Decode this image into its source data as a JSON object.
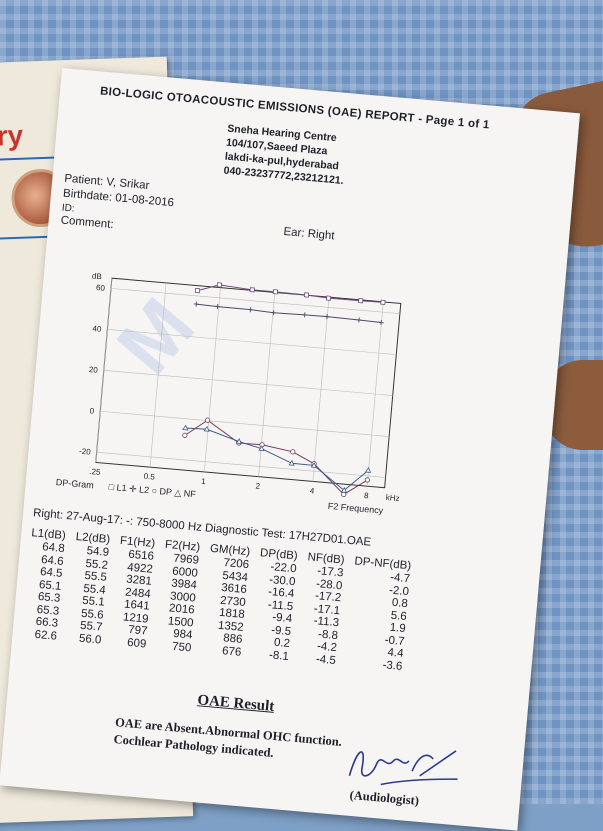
{
  "booklet": {
    "heading_fragment": "try"
  },
  "report": {
    "title": "BIO-LOGIC OTOACOUSTIC EMISSIONS (OAE) REPORT - Page 1 of 1",
    "centre": {
      "name": "Sneha Hearing Centre",
      "line1": "104/107,Saeed Plaza",
      "line2": "lakdi-ka-pul,hyderabad",
      "phone": "040-23237772,23212121."
    },
    "patient_label": "Patient: V, Srikar",
    "birthdate_label": "Birthdate: 01-08-2016",
    "id_label": "ID:",
    "comment_label": "Comment:",
    "ear_label": "Ear: Right",
    "test_line": "Right: 27-Aug-17: -: 750-8000 Hz Diagnostic Test: 17H27D01.OAE",
    "table": {
      "headers": [
        "L1(dB)",
        "L2(dB)",
        "F1(Hz)",
        "F2(Hz)",
        "GM(Hz)",
        "DP(dB)",
        "NF(dB)",
        "DP-NF(dB)"
      ],
      "rows": [
        [
          "64.8",
          "54.9",
          "6516",
          "7969",
          "7206",
          "-22.0",
          "-17.3",
          "-4.7"
        ],
        [
          "64.6",
          "55.2",
          "4922",
          "6000",
          "5434",
          "-30.0",
          "-28.0",
          "-2.0"
        ],
        [
          "64.5",
          "55.5",
          "3281",
          "3984",
          "3616",
          "-16.4",
          "-17.2",
          "0.8"
        ],
        [
          "65.1",
          "55.4",
          "2484",
          "3000",
          "2730",
          "-11.5",
          "-17.1",
          "5.6"
        ],
        [
          "65.3",
          "55.1",
          "1641",
          "2016",
          "1818",
          "-9.4",
          "-11.3",
          "1.9"
        ],
        [
          "65.3",
          "55.6",
          "1219",
          "1500",
          "1352",
          "-9.5",
          "-8.8",
          "-0.7"
        ],
        [
          "66.3",
          "55.7",
          "797",
          "984",
          "886",
          "0.2",
          "-4.2",
          "4.4"
        ],
        [
          "62.6",
          "56.0",
          "609",
          "750",
          "676",
          "-8.1",
          "-4.5",
          "-3.6"
        ]
      ]
    },
    "result_heading": "OAE Result",
    "result_line1": "OAE are Absent.Abnormal OHC function.",
    "result_line2": "Cochlear Pathology indicated.",
    "signoff": "(Audiologist)"
  },
  "chart_data": {
    "type": "line",
    "title": "DP-Gram",
    "xlabel": "F2 Frequency",
    "ylabel": "dB",
    "x_unit": "kHz",
    "x_scale": "log",
    "xlim": [
      0.25,
      10
    ],
    "ylim": [
      -25,
      65
    ],
    "x_ticks": [
      ".25",
      "0.5",
      "1",
      "2",
      "4",
      "8",
      "kHz"
    ],
    "y_ticks": [
      "60",
      "40",
      "20",
      "0",
      "-20"
    ],
    "legend": [
      "L1",
      "L2",
      "DP",
      "NF"
    ],
    "legend_position": "bottom",
    "series": [
      {
        "name": "L1",
        "marker": "square",
        "x": [
          0.75,
          0.984,
          1.5,
          2.016,
          3.0,
          3.984,
          6.0,
          7.969
        ],
        "y": [
          62.6,
          66.3,
          65.3,
          65.3,
          65.1,
          64.5,
          64.6,
          64.8
        ]
      },
      {
        "name": "L2",
        "marker": "cross",
        "x": [
          0.75,
          0.984,
          1.5,
          2.016,
          3.0,
          3.984,
          6.0,
          7.969
        ],
        "y": [
          56.0,
          55.7,
          55.6,
          55.1,
          55.4,
          55.5,
          55.2,
          54.9
        ]
      },
      {
        "name": "DP",
        "marker": "circle",
        "x": [
          0.75,
          0.984,
          1.5,
          2.016,
          3.0,
          3.984,
          6.0,
          7.969
        ],
        "y": [
          -8.1,
          0.2,
          -9.5,
          -9.4,
          -11.5,
          -16.4,
          -30.0,
          -22.0
        ]
      },
      {
        "name": "NF",
        "marker": "triangle",
        "x": [
          0.75,
          0.984,
          1.5,
          2.016,
          3.0,
          3.984,
          6.0,
          7.969
        ],
        "y": [
          -4.5,
          -4.2,
          -8.8,
          -11.3,
          -17.1,
          -17.2,
          -28.0,
          -17.3
        ]
      }
    ]
  }
}
